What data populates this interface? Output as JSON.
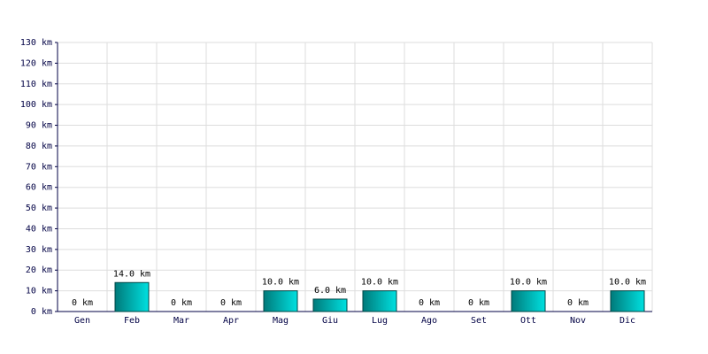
{
  "chart_data": {
    "type": "bar",
    "categories": [
      "Gen",
      "Feb",
      "Mar",
      "Apr",
      "Mag",
      "Giu",
      "Lug",
      "Ago",
      "Set",
      "Ott",
      "Nov",
      "Dic"
    ],
    "values": [
      0,
      14,
      0,
      0,
      10,
      6,
      10,
      0,
      0,
      10,
      0,
      10
    ],
    "value_labels": [
      "0 km",
      "14.0 km",
      "0 km",
      "0 km",
      "10.0 km",
      "6.0 km",
      "10.0 km",
      "0 km",
      "0 km",
      "10.0 km",
      "0 km",
      "10.0 km"
    ],
    "color": "#00e0e0",
    "ylim": [
      0,
      130
    ],
    "yticks": [
      {
        "value": 0,
        "label": "0 km"
      },
      {
        "value": 10,
        "label": "10 km"
      },
      {
        "value": 20,
        "label": "20 km"
      },
      {
        "value": 30,
        "label": "30 km"
      },
      {
        "value": 40,
        "label": "40 km"
      },
      {
        "value": 50,
        "label": "50 km"
      },
      {
        "value": 60,
        "label": "60 km"
      },
      {
        "value": 70,
        "label": "70 km"
      },
      {
        "value": 80,
        "label": "80 km"
      },
      {
        "value": 90,
        "label": "90 km"
      },
      {
        "value": 100,
        "label": "100 km"
      },
      {
        "value": 110,
        "label": "110 km"
      },
      {
        "value": 120,
        "label": "120 km"
      },
      {
        "value": 130,
        "label": "130 km"
      }
    ],
    "grid": true
  }
}
